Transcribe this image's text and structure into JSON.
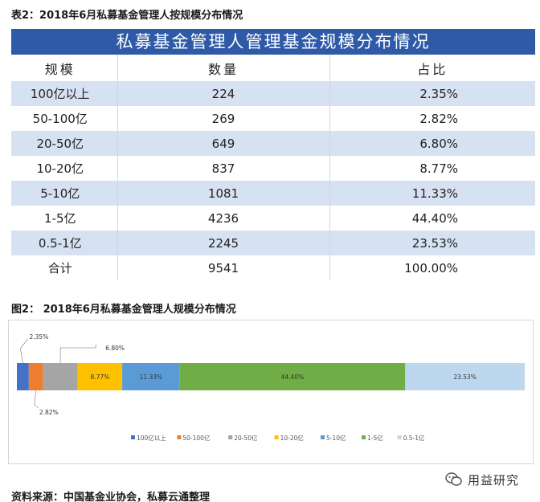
{
  "caption_table": "表2：2018年6月私募基金管理人按规模分布情况",
  "caption_chart": "图2： 2018年6月私募基金管理人规模分布情况",
  "table": {
    "title": "私募基金管理人管理基金规模分布情况",
    "headers": [
      "规模",
      "数量",
      "占比"
    ],
    "rows": [
      [
        "100亿以上",
        "224",
        "2.35%"
      ],
      [
        "50-100亿",
        "269",
        "2.82%"
      ],
      [
        "20-50亿",
        "649",
        "6.80%"
      ],
      [
        "10-20亿",
        "837",
        "8.77%"
      ],
      [
        "5-10亿",
        "1081",
        "11.33%"
      ],
      [
        "1-5亿",
        "4236",
        "44.40%"
      ],
      [
        "0.5-1亿",
        "2245",
        "23.53%"
      ],
      [
        "合计",
        "9541",
        "100.00%"
      ]
    ]
  },
  "chart_data": {
    "type": "bar",
    "stacked": true,
    "orientation": "horizontal",
    "series": [
      {
        "name": "100亿以上",
        "value": 2.35,
        "label": "2.35%",
        "color": "#4472c4"
      },
      {
        "name": "50-100亿",
        "value": 2.82,
        "label": "2.82%",
        "color": "#ed7d31"
      },
      {
        "name": "20-50亿",
        "value": 6.8,
        "label": "6.80%",
        "color": "#a5a5a5"
      },
      {
        "name": "10-20亿",
        "value": 8.77,
        "label": "8.77%",
        "color": "#ffc000"
      },
      {
        "name": "5-10亿",
        "value": 11.33,
        "label": "11.33%",
        "color": "#5b9bd5"
      },
      {
        "name": "1-5亿",
        "value": 44.4,
        "label": "44.40%",
        "color": "#70ad47"
      },
      {
        "name": "0.5-1亿",
        "value": 23.53,
        "label": "23.53%",
        "color": "#bdd7ee"
      }
    ],
    "legend_position": "bottom",
    "grid": false
  },
  "source": "资料来源：中国基金业协会，私募云通整理",
  "brand": "用益研究"
}
